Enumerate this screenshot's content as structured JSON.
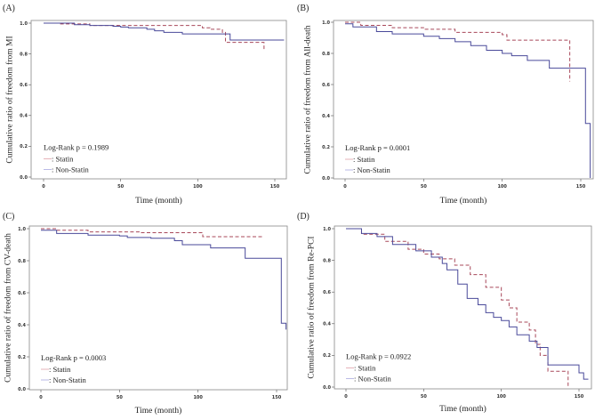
{
  "chart_data": [
    {
      "type": "line",
      "panel_label": "(A)",
      "title": "",
      "xlabel": "Time (month)",
      "ylabel": "Cumulative ratio of freedom from MI",
      "xlim": [
        0,
        157
      ],
      "ylim": [
        0,
        1
      ],
      "xticks": [
        0,
        50,
        100,
        150
      ],
      "yticks": [
        0.0,
        0.2,
        0.4,
        0.6,
        0.8,
        1.0
      ],
      "annotation": "Log-Rank p = 0.1989",
      "series": [
        {
          "name": ": Statin",
          "style": "dashed",
          "color": "#a8485a",
          "legend_color": "#e0a0a8",
          "points": [
            [
              0,
              1.0
            ],
            [
              10,
              0.995
            ],
            [
              30,
              0.985
            ],
            [
              95,
              0.985
            ],
            [
              103,
              0.97
            ],
            [
              108,
              0.96
            ],
            [
              116,
              0.94
            ],
            [
              118,
              0.875
            ],
            [
              143,
              0.875
            ],
            [
              143,
              0.82
            ]
          ]
        },
        {
          "name": ": Non-Statin",
          "style": "solid",
          "color": "#4a4a9a",
          "legend_color": "#a8a8e0",
          "points": [
            [
              0,
              1.0
            ],
            [
              20,
              0.99
            ],
            [
              30,
              0.985
            ],
            [
              45,
              0.98
            ],
            [
              50,
              0.975
            ],
            [
              55,
              0.97
            ],
            [
              67,
              0.96
            ],
            [
              72,
              0.95
            ],
            [
              78,
              0.94
            ],
            [
              90,
              0.93
            ],
            [
              121,
              0.93
            ],
            [
              121,
              0.89
            ],
            [
              156,
              0.89
            ]
          ]
        }
      ]
    },
    {
      "type": "line",
      "panel_label": "(B)",
      "title": "",
      "xlabel": "Time (month)",
      "ylabel": "Cumulative ratio of freedom from All-death",
      "xlim": [
        0,
        157
      ],
      "ylim": [
        0,
        1
      ],
      "xticks": [
        0,
        50,
        100,
        150
      ],
      "yticks": [
        0.0,
        0.2,
        0.4,
        0.6,
        0.8,
        1.0
      ],
      "annotation": "Log-Rank p = 0.0001",
      "series": [
        {
          "name": ": Statin",
          "style": "dashed",
          "color": "#a8485a",
          "legend_color": "#e0a0a8",
          "points": [
            [
              0,
              1.0
            ],
            [
              10,
              0.98
            ],
            [
              30,
              0.965
            ],
            [
              50,
              0.955
            ],
            [
              70,
              0.935
            ],
            [
              100,
              0.92
            ],
            [
              103,
              0.885
            ],
            [
              143,
              0.885
            ],
            [
              143,
              0.62
            ]
          ]
        },
        {
          "name": ": Non-Statin",
          "style": "solid",
          "color": "#4a4a9a",
          "legend_color": "#a8a8e0",
          "points": [
            [
              0,
              0.99
            ],
            [
              5,
              0.97
            ],
            [
              20,
              0.94
            ],
            [
              30,
              0.925
            ],
            [
              50,
              0.91
            ],
            [
              60,
              0.895
            ],
            [
              70,
              0.875
            ],
            [
              80,
              0.85
            ],
            [
              90,
              0.82
            ],
            [
              100,
              0.8
            ],
            [
              106,
              0.785
            ],
            [
              116,
              0.755
            ],
            [
              130,
              0.755
            ],
            [
              130,
              0.705
            ],
            [
              153,
              0.705
            ],
            [
              153,
              0.35
            ],
            [
              156,
              0.35
            ],
            [
              156,
              0.0
            ]
          ]
        }
      ]
    },
    {
      "type": "line",
      "panel_label": "(C)",
      "title": "",
      "xlabel": "Time (month)",
      "ylabel": "Cumulative ratio of freedom from CV-death",
      "xlim": [
        0,
        157
      ],
      "ylim": [
        0,
        1
      ],
      "xticks": [
        0,
        50,
        100,
        150
      ],
      "yticks": [
        0.0,
        0.2,
        0.4,
        0.6,
        0.8,
        1.0
      ],
      "annotation": "Log-Rank p = 0.0003",
      "series": [
        {
          "name": ": Statin",
          "style": "dashed",
          "color": "#a8485a",
          "legend_color": "#e0a0a8",
          "points": [
            [
              0,
              1.0
            ],
            [
              10,
              0.99
            ],
            [
              30,
              0.98
            ],
            [
              63,
              0.975
            ],
            [
              102,
              0.975
            ],
            [
              103,
              0.95
            ],
            [
              141,
              0.95
            ]
          ]
        },
        {
          "name": ": Non-Statin",
          "style": "solid",
          "color": "#4a4a9a",
          "legend_color": "#a8a8e0",
          "points": [
            [
              0,
              0.99
            ],
            [
              10,
              0.97
            ],
            [
              30,
              0.96
            ],
            [
              50,
              0.955
            ],
            [
              55,
              0.945
            ],
            [
              70,
              0.94
            ],
            [
              85,
              0.925
            ],
            [
              90,
              0.9
            ],
            [
              107,
              0.9
            ],
            [
              108,
              0.88
            ],
            [
              130,
              0.88
            ],
            [
              130,
              0.815
            ],
            [
              153,
              0.815
            ],
            [
              153,
              0.41
            ],
            [
              156,
              0.41
            ],
            [
              156,
              0.37
            ]
          ]
        }
      ]
    },
    {
      "type": "line",
      "panel_label": "(D)",
      "title": "",
      "xlabel": "Time (month)",
      "ylabel": "Cumulative ratio of freedom from Re-PCI",
      "xlim": [
        0,
        157
      ],
      "ylim": [
        0,
        1
      ],
      "xticks": [
        0,
        50,
        100,
        150
      ],
      "yticks": [
        0.0,
        0.2,
        0.4,
        0.6,
        0.8,
        1.0
      ],
      "annotation": "Log-Rank p = 0.0922",
      "series": [
        {
          "name": ": Statin",
          "style": "dashed",
          "color": "#a8485a",
          "legend_color": "#e0a0a8",
          "points": [
            [
              0,
              1.0
            ],
            [
              10,
              0.965
            ],
            [
              25,
              0.92
            ],
            [
              40,
              0.87
            ],
            [
              50,
              0.84
            ],
            [
              60,
              0.81
            ],
            [
              70,
              0.77
            ],
            [
              80,
              0.71
            ],
            [
              90,
              0.63
            ],
            [
              100,
              0.55
            ],
            [
              105,
              0.5
            ],
            [
              110,
              0.41
            ],
            [
              118,
              0.36
            ],
            [
              122,
              0.27
            ],
            [
              125,
              0.2
            ],
            [
              130,
              0.2
            ],
            [
              130,
              0.1
            ],
            [
              143,
              0.1
            ],
            [
              143,
              0.0
            ]
          ]
        },
        {
          "name": ": Non-Statin",
          "style": "solid",
          "color": "#4a4a9a",
          "legend_color": "#a8a8e0",
          "points": [
            [
              0,
              1.0
            ],
            [
              10,
              0.97
            ],
            [
              20,
              0.95
            ],
            [
              30,
              0.9
            ],
            [
              45,
              0.86
            ],
            [
              55,
              0.82
            ],
            [
              62,
              0.78
            ],
            [
              65,
              0.74
            ],
            [
              72,
              0.65
            ],
            [
              78,
              0.56
            ],
            [
              85,
              0.52
            ],
            [
              90,
              0.47
            ],
            [
              95,
              0.44
            ],
            [
              100,
              0.42
            ],
            [
              105,
              0.38
            ],
            [
              110,
              0.33
            ],
            [
              118,
              0.29
            ],
            [
              123,
              0.25
            ],
            [
              130,
              0.25
            ],
            [
              130,
              0.14
            ],
            [
              150,
              0.14
            ],
            [
              150,
              0.09
            ],
            [
              153,
              0.09
            ],
            [
              153,
              0.05
            ],
            [
              156,
              0.05
            ]
          ]
        }
      ]
    }
  ]
}
